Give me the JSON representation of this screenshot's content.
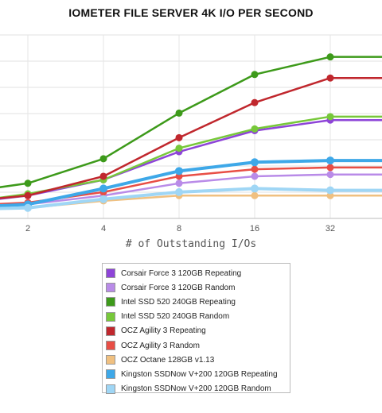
{
  "chart_data": {
    "type": "line",
    "title": "IOMETER FILE SERVER 4K I/O PER SECOND",
    "xlabel": "# of Outstanding I/Os",
    "ylabel": "",
    "x": [
      1,
      2,
      4,
      8,
      16,
      32,
      64
    ],
    "x_tick_labels": [
      "2",
      "4",
      "8",
      "16",
      "32"
    ],
    "x_tick_values": [
      2,
      4,
      8,
      16,
      32
    ],
    "x_scale": "log2",
    "ylim": [
      0,
      1
    ],
    "grid": true,
    "legend_position": "bottom",
    "series": [
      {
        "name": "Corsair Force 3 120GB Repeating",
        "color": "#8e44d8",
        "values": [
          0.08,
          0.13,
          0.22,
          0.38,
          0.5,
          0.56,
          0.56
        ]
      },
      {
        "name": "Corsair Force 3 120GB Random",
        "color": "#b98be8",
        "values": [
          0.05,
          0.08,
          0.13,
          0.2,
          0.24,
          0.25,
          0.25
        ]
      },
      {
        "name": "Intel SSD 520 240GB Repeating",
        "color": "#3d9a1a",
        "values": [
          0.14,
          0.2,
          0.34,
          0.6,
          0.82,
          0.92,
          0.92
        ]
      },
      {
        "name": "Intel SSD 520 240GB Random",
        "color": "#77c83a",
        "values": [
          0.08,
          0.14,
          0.22,
          0.4,
          0.51,
          0.58,
          0.58
        ]
      },
      {
        "name": "OCZ Agility 3 Repeating",
        "color": "#c0272d",
        "values": [
          0.09,
          0.13,
          0.24,
          0.46,
          0.66,
          0.8,
          0.8
        ]
      },
      {
        "name": "OCZ Agility 3 Random",
        "color": "#e84e45",
        "values": [
          0.07,
          0.09,
          0.15,
          0.24,
          0.28,
          0.29,
          0.29
        ]
      },
      {
        "name": "OCZ Octane 128GB v1.13",
        "color": "#f0c080",
        "values": [
          0.05,
          0.06,
          0.1,
          0.13,
          0.13,
          0.13,
          0.13
        ]
      },
      {
        "name": "Kingston SSDNow V+200 120GB Repeating",
        "color": "#3ea8e8",
        "values": [
          0.06,
          0.08,
          0.17,
          0.27,
          0.32,
          0.33,
          0.33
        ]
      },
      {
        "name": "Kingston SSDNow V+200 120GB Random",
        "color": "#9fd6f5",
        "values": [
          0.05,
          0.06,
          0.11,
          0.15,
          0.17,
          0.16,
          0.16
        ]
      }
    ]
  }
}
